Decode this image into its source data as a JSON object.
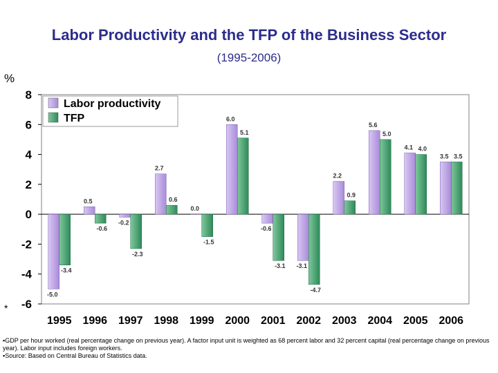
{
  "title": "Labor Productivity and the TFP of the Business Sector",
  "subtitle": "(1995-2006)",
  "unit_label": "%",
  "asterisk": "*",
  "colors": {
    "labor": "#a98bd8",
    "tfp": "#2e8a5a",
    "frame": "#000000"
  },
  "chart_data": {
    "type": "bar",
    "title": "Labor Productivity and the TFP of the Business Sector",
    "subtitle": "(1995-2006)",
    "ylabel": "%",
    "ylim": [
      -6,
      8
    ],
    "yticks": [
      8,
      6,
      4,
      2,
      0,
      -2,
      -4,
      -6
    ],
    "legend": "top-left",
    "categories": [
      "1995",
      "1996",
      "1997",
      "1998",
      "1999",
      "2000",
      "2001",
      "2002",
      "2003",
      "2004",
      "2005",
      "2006"
    ],
    "series": [
      {
        "name": "Labor productivity",
        "values": [
          -5.0,
          0.5,
          -0.2,
          2.7,
          0.0,
          6.0,
          -0.6,
          -3.1,
          2.2,
          5.6,
          4.1,
          3.5
        ],
        "labels": [
          "-5.0",
          "0.5",
          "-0.2",
          "2.7",
          "0.0",
          "6.0",
          "-0.6",
          "-3.1",
          "2.2",
          "5.6",
          "4.1",
          "3.5"
        ]
      },
      {
        "name": "TFP",
        "values": [
          -3.4,
          -0.6,
          -2.3,
          0.6,
          -1.5,
          5.1,
          -3.1,
          -4.7,
          0.9,
          5.0,
          4.0,
          3.5
        ],
        "labels": [
          "-3.4",
          "-0.6",
          "-2.3",
          "0.6",
          "-1.5",
          "5.1",
          "-3.1",
          "-4.7",
          "0.9",
          "5.0",
          "4.0",
          "3.5"
        ]
      }
    ]
  },
  "notes": {
    "line1": "▪GDP per hour worked (real percentage change on previous year). A factor input unit is weighted as 68 percent labor and 32 percent capital (real percentage change on previous year). Labor input includes foreign workers.",
    "line2": "▪Source: Based on Central Bureau of Statistics data."
  }
}
